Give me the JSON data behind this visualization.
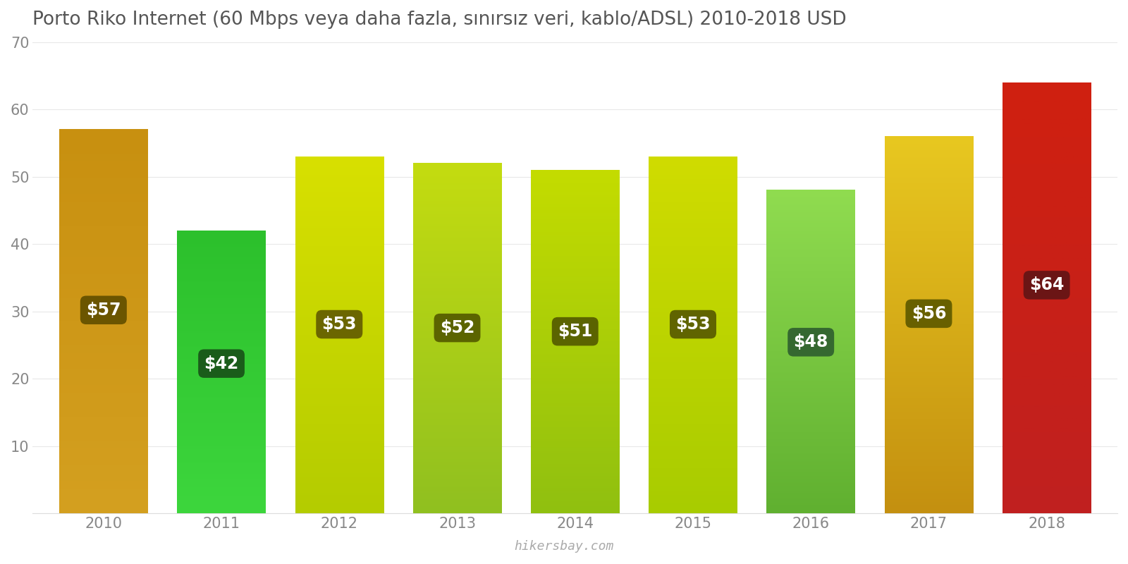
{
  "years": [
    2010,
    2011,
    2012,
    2013,
    2014,
    2015,
    2016,
    2017,
    2018
  ],
  "values": [
    57,
    42,
    53,
    52,
    51,
    53,
    48,
    56,
    64
  ],
  "bar_colors": [
    "#D4A020",
    "#3DD63D",
    "#C8D400",
    "#AACE20",
    "#AACE10",
    "#C0D410",
    "#7DC840",
    "#D4B020",
    "#E03020"
  ],
  "label_bg_colors": [
    "#6B5500",
    "#1A5C1A",
    "#6B6600",
    "#5B6400",
    "#5B6400",
    "#606400",
    "#356830",
    "#686000",
    "#6B1515"
  ],
  "title": "Porto Riko Internet (60 Mbps veya daha fazla, sınırsız veri, kablo/ADSL) 2010-2018 USD",
  "ylim": [
    0,
    70
  ],
  "yticks": [
    0,
    10,
    20,
    30,
    40,
    50,
    60,
    70
  ],
  "watermark": "hikersbay.com",
  "background_color": "#ffffff",
  "title_fontsize": 19,
  "label_fontsize": 17,
  "tick_fontsize": 15
}
